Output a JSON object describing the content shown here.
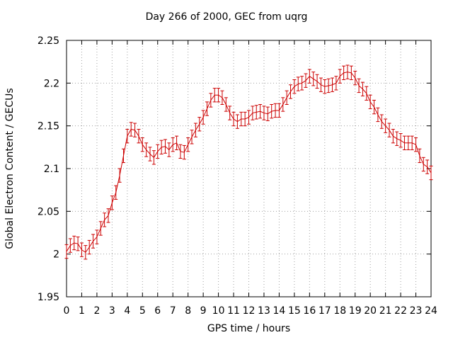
{
  "chart_data": {
    "type": "line",
    "title": "Day 266 of 2000, GEC from uqrg",
    "xlabel": "GPS time / hours",
    "ylabel": "Global Electron Content / GECUs",
    "xlim": [
      0,
      24
    ],
    "ylim": [
      1.95,
      2.25
    ],
    "xticks": [
      "0",
      "1",
      "2",
      "3",
      "4",
      "5",
      "6",
      "7",
      "8",
      "9",
      "10",
      "11",
      "12",
      "13",
      "14",
      "15",
      "16",
      "17",
      "18",
      "19",
      "20",
      "21",
      "22",
      "23",
      "24"
    ],
    "yticks": [
      "1.95",
      "2",
      "2.05",
      "2.1",
      "2.15",
      "2.2",
      "2.25"
    ],
    "grid": true,
    "series": [
      {
        "color": "#cc0000",
        "error": 0.008,
        "x": [
          0,
          0.25,
          0.5,
          0.75,
          1,
          1.25,
          1.5,
          1.75,
          2,
          2.25,
          2.5,
          2.75,
          3,
          3.25,
          3.5,
          3.75,
          4,
          4.25,
          4.5,
          4.75,
          5,
          5.25,
          5.5,
          5.75,
          6,
          6.25,
          6.5,
          6.75,
          7,
          7.25,
          7.5,
          7.75,
          8,
          8.25,
          8.5,
          8.75,
          9,
          9.25,
          9.5,
          9.75,
          10,
          10.25,
          10.5,
          10.75,
          11,
          11.25,
          11.5,
          11.75,
          12,
          12.25,
          12.5,
          12.75,
          13,
          13.25,
          13.5,
          13.75,
          14,
          14.25,
          14.5,
          14.75,
          15,
          15.25,
          15.5,
          15.75,
          16,
          16.25,
          16.5,
          16.75,
          17,
          17.25,
          17.5,
          17.75,
          18,
          18.25,
          18.5,
          18.75,
          19,
          19.25,
          19.5,
          19.75,
          20,
          20.25,
          20.5,
          20.75,
          21,
          21.25,
          21.5,
          21.75,
          22,
          22.25,
          22.5,
          22.75,
          23,
          23.25,
          23.5,
          23.75,
          24
        ],
        "y": [
          2.003,
          2.01,
          2.013,
          2.012,
          2.005,
          2.002,
          2.008,
          2.015,
          2.02,
          2.03,
          2.04,
          2.045,
          2.06,
          2.072,
          2.092,
          2.115,
          2.138,
          2.146,
          2.145,
          2.138,
          2.128,
          2.122,
          2.117,
          2.113,
          2.12,
          2.125,
          2.126,
          2.122,
          2.128,
          2.13,
          2.12,
          2.119,
          2.128,
          2.137,
          2.145,
          2.152,
          2.16,
          2.17,
          2.18,
          2.186,
          2.186,
          2.183,
          2.175,
          2.165,
          2.158,
          2.155,
          2.158,
          2.158,
          2.16,
          2.165,
          2.166,
          2.167,
          2.165,
          2.164,
          2.167,
          2.168,
          2.168,
          2.175,
          2.183,
          2.19,
          2.196,
          2.199,
          2.2,
          2.203,
          2.208,
          2.205,
          2.202,
          2.198,
          2.196,
          2.197,
          2.198,
          2.2,
          2.208,
          2.212,
          2.213,
          2.212,
          2.206,
          2.197,
          2.193,
          2.188,
          2.178,
          2.172,
          2.163,
          2.155,
          2.15,
          2.145,
          2.138,
          2.135,
          2.133,
          2.13,
          2.13,
          2.13,
          2.128,
          2.115,
          2.105,
          2.102,
          2.095
        ]
      }
    ]
  }
}
